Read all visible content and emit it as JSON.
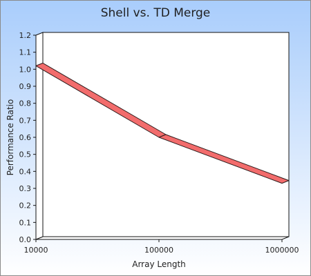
{
  "chart_data": {
    "type": "line",
    "title": "Shell vs. TD Merge",
    "xlabel": "Array Length",
    "ylabel": "Performance Ratio",
    "x_scale": "log",
    "x": [
      10000,
      100000,
      1000000
    ],
    "x_tick_labels": [
      "10000",
      "100000",
      "1000000"
    ],
    "y_tick_labels": [
      "0.0",
      "0.1",
      "0.2",
      "0.3",
      "0.4",
      "0.5",
      "0.6",
      "0.7",
      "0.8",
      "0.9",
      "1.0",
      "1.1",
      "1.2"
    ],
    "ylim": [
      0,
      1.2
    ],
    "series": [
      {
        "values": [
          1.02,
          0.6,
          0.33
        ]
      }
    ],
    "grid": false,
    "legend": "none",
    "colors": {
      "series_fill": "#f26c6c",
      "series_edge": "#2b1a1a",
      "background_top": "#a9cdfc",
      "background_bottom": "#ffffff"
    }
  }
}
